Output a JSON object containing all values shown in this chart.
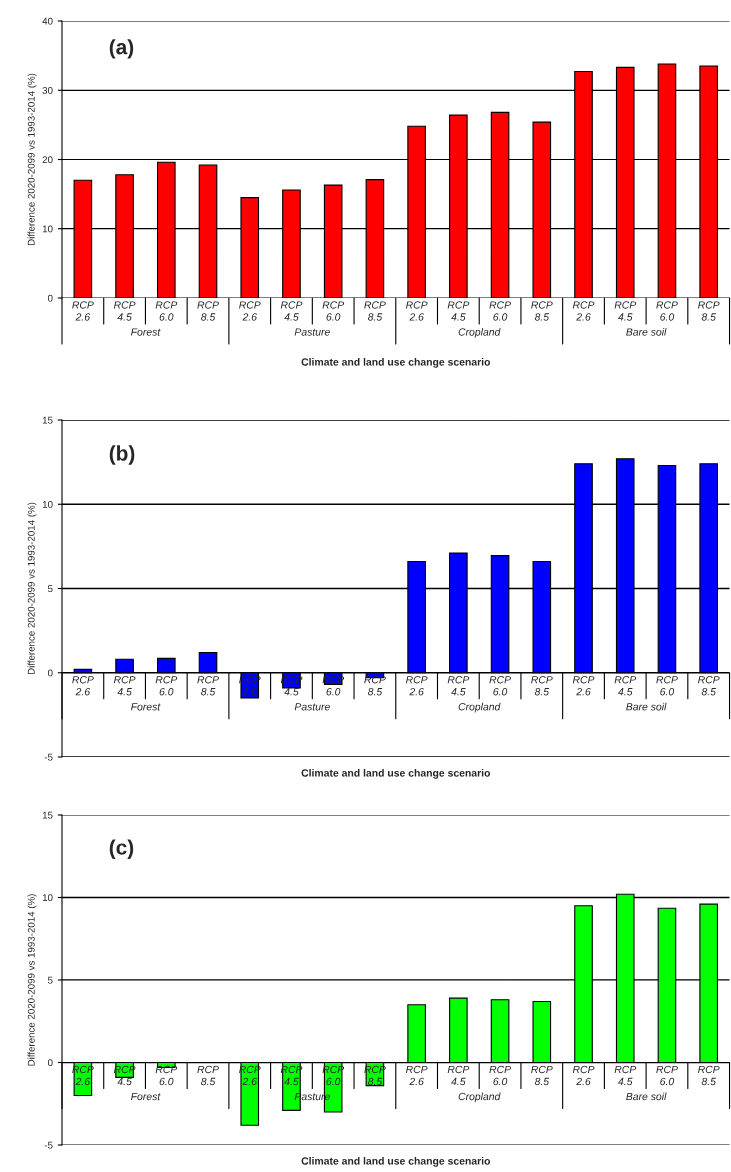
{
  "chart_data": [
    {
      "type": "bar",
      "title": "(a)",
      "xlabel": "Climate and land use change scenario",
      "ylabel": "Difference 2020-2099 vs 1993-2014 (%)",
      "categories": [
        "RCP\n2.6",
        "RCP\n4.5",
        "RCP\n6.0",
        "RCP\n8.5",
        "RCP\n2.6",
        "RCP\n4.5",
        "RCP\n6.0",
        "RCP\n8.5",
        "RCP\n2.6",
        "RCP\n4.5",
        "RCP\n6.0",
        "RCP\n8.5",
        "RCP\n2.6",
        "RCP\n4.5",
        "RCP\n6.0",
        "RCP\n8.5"
      ],
      "annotations": [
        "Forest",
        "Pasture",
        "Cropland",
        "Bare soil"
      ],
      "values": [
        17.0,
        17.8,
        19.6,
        19.2,
        14.5,
        15.6,
        16.3,
        17.1,
        24.8,
        26.4,
        26.8,
        25.4,
        32.7,
        33.3,
        33.8,
        33.5
      ],
      "color": "#ff0000",
      "ylim": [
        0,
        40
      ],
      "yticks": [
        0,
        10,
        20,
        30,
        40
      ],
      "grid": "y"
    },
    {
      "type": "bar",
      "title": "(b)",
      "xlabel": "Climate and land use change scenario",
      "ylabel": "Difference 2020-2099 vs 1993-2014 (%)",
      "categories": [
        "RCP\n2.6",
        "RCP\n4.5",
        "RCP\n6.0",
        "RCP\n8.5",
        "RCP\n2.6",
        "RCP\n4.5",
        "RCP\n6.0",
        "RCP\n8.5",
        "RCP\n2.6",
        "RCP\n4.5",
        "RCP\n6.0",
        "RCP\n8.5",
        "RCP\n2.6",
        "RCP\n4.5",
        "RCP\n6.0",
        "RCP\n8.5"
      ],
      "annotations": [
        "Forest",
        "Pasture",
        "Cropland",
        "Bare soil"
      ],
      "values": [
        0.2,
        0.8,
        0.85,
        1.2,
        -1.5,
        -0.9,
        -0.7,
        -0.3,
        6.6,
        7.1,
        6.95,
        6.6,
        12.4,
        12.7,
        12.3,
        12.4
      ],
      "color": "#0000ff",
      "ylim": [
        -5,
        15
      ],
      "yticks": [
        -5,
        0,
        5,
        10,
        15
      ],
      "grid": "y"
    },
    {
      "type": "bar",
      "title": "(c)",
      "xlabel": "Climate and land use change scenario",
      "ylabel": "Difference 2020-2099 vs 1993-2014 (%)",
      "categories": [
        "RCP\n2.6",
        "RCP\n4.5",
        "RCP\n6.0",
        "RCP\n8.5",
        "RCP\n2.6",
        "RCP\n4.5",
        "RCP\n6.0",
        "RCP\n8.5",
        "RCP\n2.6",
        "RCP\n4.5",
        "RCP\n6.0",
        "RCP\n8.5",
        "RCP\n2.6",
        "RCP\n4.5",
        "RCP\n6.0",
        "RCP\n8.5"
      ],
      "annotations": [
        "Forest",
        "Pasture",
        "Cropland",
        "Bare soil"
      ],
      "values": [
        -2.0,
        -0.9,
        -0.3,
        null,
        -3.8,
        -2.9,
        -3.0,
        -1.4,
        3.5,
        3.9,
        3.8,
        3.7,
        9.5,
        10.2,
        9.35,
        9.6
      ],
      "color": "#00ff00",
      "ylim": [
        -5,
        15
      ],
      "yticks": [
        -5,
        0,
        5,
        10,
        15
      ],
      "grid": "y"
    }
  ]
}
